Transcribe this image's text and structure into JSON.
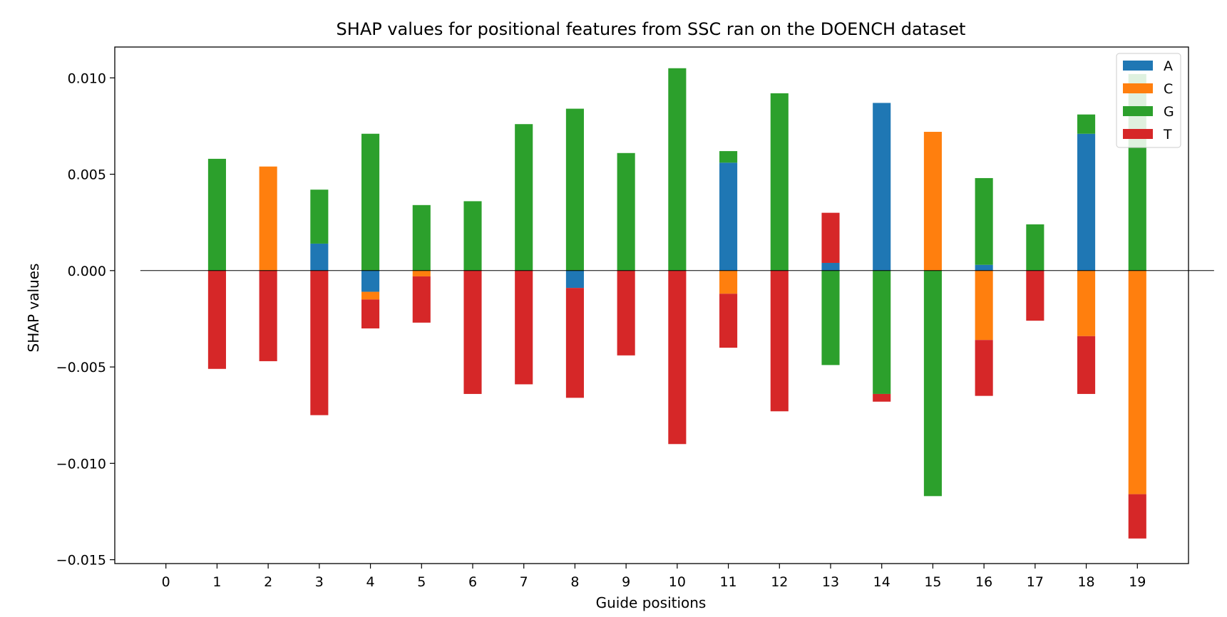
{
  "chart_data": {
    "type": "bar",
    "stacked": true,
    "title": "SHAP values for positional features from SSC ran on the DOENCH dataset",
    "xlabel": "Guide positions",
    "ylabel": "SHAP values",
    "categories": [
      "0",
      "1",
      "2",
      "3",
      "4",
      "5",
      "6",
      "7",
      "8",
      "9",
      "10",
      "11",
      "12",
      "13",
      "14",
      "15",
      "16",
      "17",
      "18",
      "19"
    ],
    "ylim": [
      -0.0152,
      0.0116
    ],
    "xlim": [
      -1,
      20
    ],
    "yticks": [
      0.01,
      0.005,
      0.0,
      -0.005,
      -0.01,
      -0.015
    ],
    "ytick_labels": [
      "0.010",
      "0.005",
      "0.000",
      "−0.005",
      "−0.010",
      "−0.015"
    ],
    "zero_line": true,
    "grid": false,
    "legend_position": "top-right",
    "series": [
      {
        "name": "A",
        "color": "#1f77b4",
        "values": [
          0,
          0,
          0,
          0.0014,
          -0.0011,
          0,
          0,
          0,
          -0.0009,
          0,
          0,
          0.0056,
          0,
          0.0004,
          0.0087,
          0,
          0.0003,
          0,
          0.0071,
          0
        ]
      },
      {
        "name": "C",
        "color": "#ff7f0e",
        "values": [
          0,
          0,
          0.0054,
          0,
          -0.0004,
          -0.0003,
          0,
          0,
          0,
          0,
          0,
          -0.0012,
          0,
          0,
          0,
          0.0072,
          -0.0036,
          0,
          -0.0034,
          -0.0116
        ]
      },
      {
        "name": "G",
        "color": "#2ca02c",
        "values": [
          0,
          0.0058,
          0,
          0.0028,
          0.0071,
          0.0034,
          0.0036,
          0.0076,
          0.0084,
          0.0061,
          0.0105,
          0.0006,
          0.0092,
          -0.0049,
          -0.0064,
          -0.0117,
          0.0045,
          0.0024,
          0.001,
          0.0102
        ]
      },
      {
        "name": "T",
        "color": "#d62728",
        "values": [
          0,
          -0.0051,
          -0.0047,
          -0.0075,
          -0.0015,
          -0.0024,
          -0.0064,
          -0.0059,
          -0.0057,
          -0.0044,
          -0.009,
          -0.0028,
          -0.0073,
          0.0026,
          -0.0004,
          0,
          -0.0029,
          -0.0026,
          -0.003,
          -0.0023
        ]
      }
    ]
  }
}
